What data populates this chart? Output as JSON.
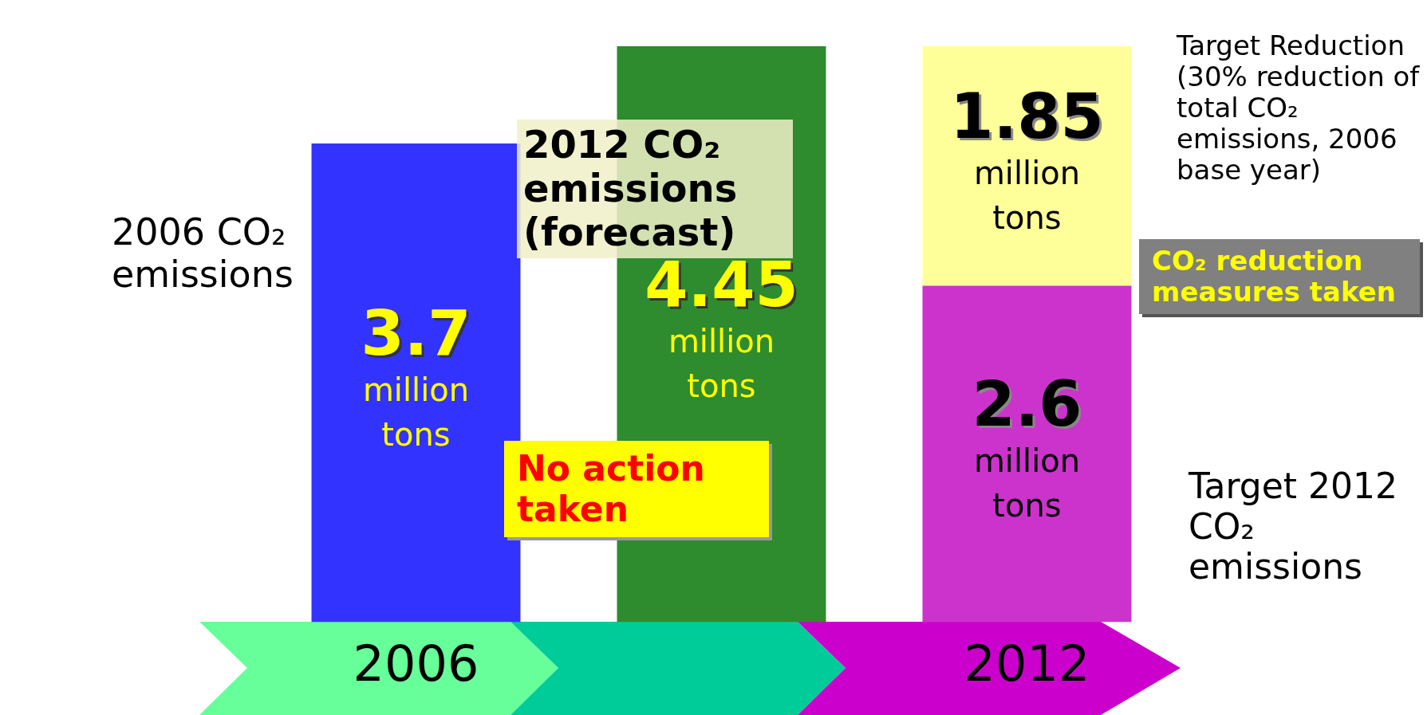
{
  "chart_data": {
    "type": "bar",
    "stacked": true,
    "categories": [
      "2006",
      null,
      "2012"
    ],
    "series": [
      {
        "name": "2006 CO₂ emissions",
        "color": "#3333ff",
        "values": [
          3.7,
          null,
          null
        ],
        "value_labels": [
          "3.7 million tons",
          null,
          null
        ]
      },
      {
        "name": "2012 CO₂ emissions (forecast)",
        "color": "#2e8b2e",
        "values": [
          null,
          4.45,
          null
        ],
        "value_labels": [
          null,
          "4.45 million tons",
          null
        ]
      },
      {
        "name": "Target 2012 CO₂ emissions",
        "color": "#cc33cc",
        "values": [
          null,
          null,
          2.6
        ],
        "value_labels": [
          null,
          null,
          "2.6 million tons"
        ]
      },
      {
        "name": "Target Reduction (30% reduction of total CO₂ emissions, 2006 base year)",
        "color": "#ffff99",
        "values": [
          null,
          null,
          1.85
        ],
        "value_labels": [
          null,
          null,
          "1.85 million tons"
        ]
      }
    ],
    "annotations": [
      "No action taken",
      "CO₂ reduction measures taken"
    ],
    "grid": false,
    "legend": false
  }
}
